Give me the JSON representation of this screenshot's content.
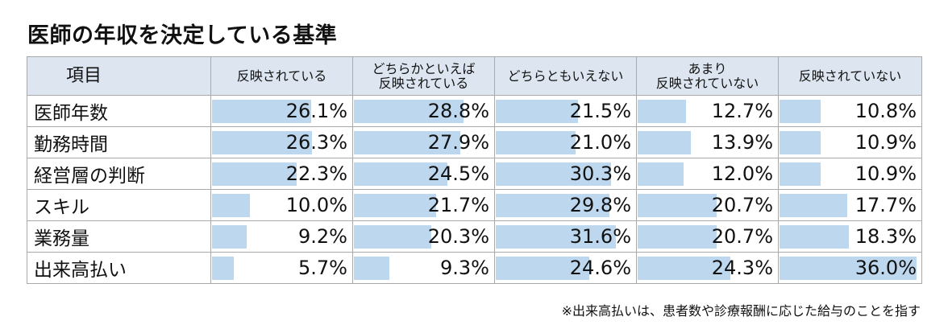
{
  "title": "医師の年収を決定している基準",
  "note": "※出来高払いは、患者数や診療報酬に応じた給与のことを指す",
  "chart_data": {
    "type": "table",
    "item_header": "項目",
    "columns": [
      {
        "line1": "反映されている",
        "line2": ""
      },
      {
        "line1": "どちらかといえば",
        "line2": "反映されている"
      },
      {
        "line1": "どちらともいえない",
        "line2": ""
      },
      {
        "line1": "あまり",
        "line2": "反映されていない"
      },
      {
        "line1": "反映されていない",
        "line2": ""
      }
    ],
    "rows": [
      {
        "label": "医師年数",
        "values": [
          26.1,
          28.8,
          21.5,
          12.7,
          10.8
        ],
        "display": [
          "26.1%",
          "28.8%",
          "21.5%",
          "12.7%",
          "10.8%"
        ]
      },
      {
        "label": "勤務時間",
        "values": [
          26.3,
          27.9,
          21.0,
          13.9,
          10.9
        ],
        "display": [
          "26.3%",
          "27.9%",
          "21.0%",
          "13.9%",
          "10.9%"
        ]
      },
      {
        "label": "経営層の判断",
        "values": [
          22.3,
          24.5,
          30.3,
          12.0,
          10.9
        ],
        "display": [
          "22.3%",
          "24.5%",
          "30.3%",
          "12.0%",
          "10.9%"
        ]
      },
      {
        "label": "スキル",
        "values": [
          10.0,
          21.7,
          29.8,
          20.7,
          17.7
        ],
        "display": [
          "10.0%",
          "21.7%",
          "29.8%",
          "20.7%",
          "17.7%"
        ]
      },
      {
        "label": "業務量",
        "values": [
          9.2,
          20.3,
          31.6,
          20.7,
          18.3
        ],
        "display": [
          "9.2%",
          "20.3%",
          "31.6%",
          "20.7%",
          "18.3%"
        ]
      },
      {
        "label": "出来高払い",
        "values": [
          5.7,
          9.3,
          24.6,
          24.3,
          36.0
        ],
        "display": [
          "5.7%",
          "9.3%",
          "24.6%",
          "24.3%",
          "36.0%"
        ]
      }
    ],
    "bar_scale_max": 36.0,
    "colors": {
      "bar": "#bdd7ee",
      "header_bg": "#dde6f0",
      "border": "#a9a9a9"
    }
  }
}
